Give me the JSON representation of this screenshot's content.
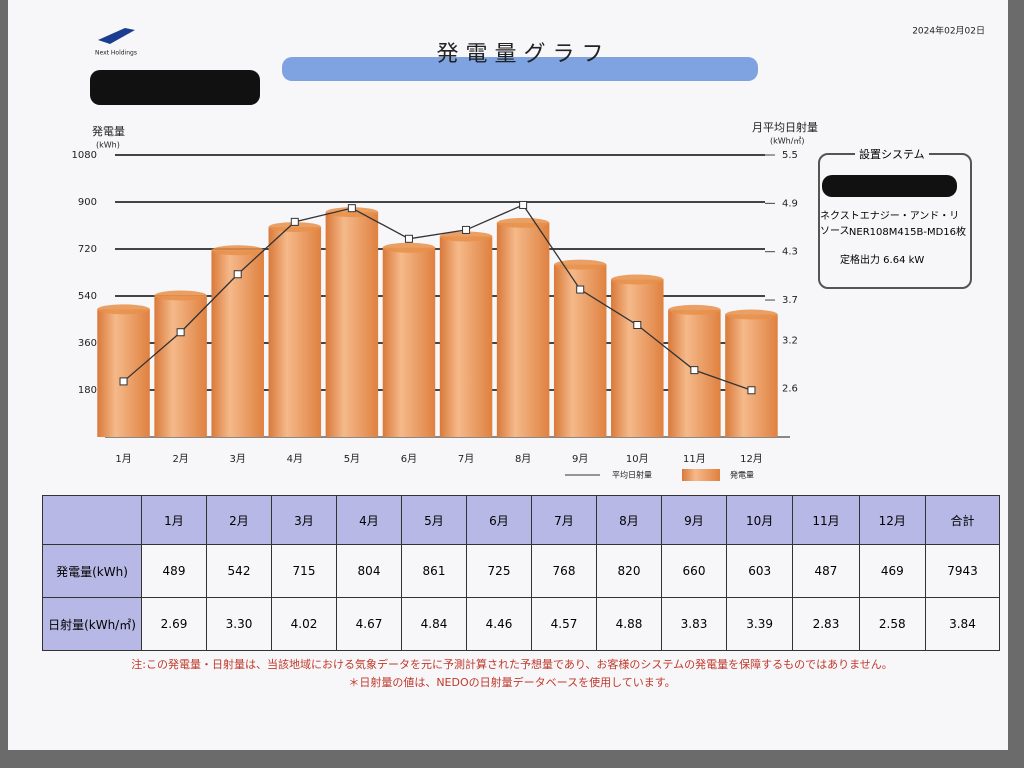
{
  "header": {
    "logo": "Next Holdings",
    "date": "2024年02月02日",
    "title": "発 電 量 グ ラ フ"
  },
  "chart_data": {
    "type": "bar",
    "y_label": "発電量",
    "y_unit": "(kWh)",
    "y2_label": "月平均日射量",
    "y2_unit": "(kWh/㎡)",
    "categories": [
      "1月",
      "2月",
      "3月",
      "4月",
      "5月",
      "6月",
      "7月",
      "8月",
      "9月",
      "10月",
      "11月",
      "12月"
    ],
    "series": [
      {
        "name": "発電量",
        "color": "#e8904a",
        "values": [
          489,
          542,
          715,
          804,
          861,
          725,
          768,
          820,
          660,
          603,
          487,
          469
        ]
      },
      {
        "name": "平均日射量",
        "color": "#333333",
        "axis": "y2",
        "values": [
          2.69,
          3.3,
          4.02,
          4.67,
          4.84,
          4.46,
          4.57,
          4.88,
          3.83,
          3.39,
          2.83,
          2.58
        ]
      }
    ],
    "ylim": [
      0,
      1080
    ],
    "yticks": [
      180,
      360,
      540,
      720,
      900,
      1080
    ],
    "y2lim": [
      2.0,
      5.5
    ],
    "y2ticks": [
      2.6,
      3.2,
      3.7,
      4.3,
      4.9,
      5.5
    ],
    "grid": true
  },
  "system": {
    "title": "設置システム",
    "maker": "ネクストエナジー・アンド・リソース",
    "model": "NER108M415B-MD16枚",
    "output": "定格出力 6.64 kW"
  },
  "table": {
    "header": [
      "1月",
      "2月",
      "3月",
      "4月",
      "5月",
      "6月",
      "7月",
      "8月",
      "9月",
      "10月",
      "11月",
      "12月",
      "合計"
    ],
    "rows": [
      [
        "発電量(kWh)",
        "489",
        "542",
        "715",
        "804",
        "861",
        "725",
        "768",
        "820",
        "660",
        "603",
        "487",
        "469",
        "7943"
      ],
      [
        "日射量(kWh/㎡)",
        "2.69",
        "3.30",
        "4.02",
        "4.67",
        "4.84",
        "4.46",
        "4.57",
        "4.88",
        "3.83",
        "3.39",
        "2.83",
        "2.58",
        "3.84"
      ]
    ]
  },
  "notes": [
    "注:この発電量・日射量は、当該地域における気象データを元に予測計算された予想量であり、お客様のシステムの発電量を保障するものではありません。",
    "＊日射量の値は、NEDOの日射量データベースを使用しています。"
  ]
}
